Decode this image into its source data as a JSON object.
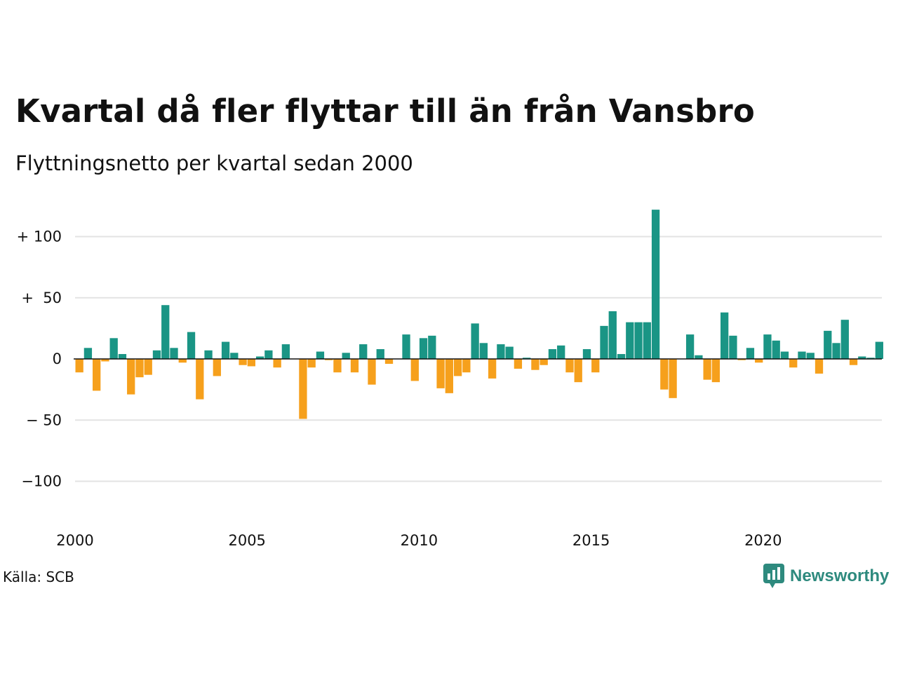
{
  "header": {
    "title": "Kvartal då fler flyttar till än från Vansbro",
    "subtitle": "Flyttningsnetto per kvartal sedan 2000"
  },
  "footer": {
    "source": "Källa: SCB",
    "brand": "Newsworthy"
  },
  "colors": {
    "positive": "#1a9585",
    "negative": "#f6a01c",
    "grid": "#e3e3e3",
    "brand": "#2e8a7e"
  },
  "chart_data": {
    "type": "bar",
    "title": "Kvartal då fler flyttar till än från Vansbro",
    "subtitle": "Flyttningsnetto per kvartal sedan 2000",
    "xlabel": "",
    "ylabel": "",
    "ylim": [
      -130,
      125
    ],
    "yticks": [
      {
        "value": 100,
        "label": "+ 100"
      },
      {
        "value": 50,
        "label": "+  50"
      },
      {
        "value": 0,
        "label": "0"
      },
      {
        "value": -50,
        "label": "− 50"
      },
      {
        "value": -100,
        "label": "−100"
      }
    ],
    "xticks": [
      {
        "value": 2000,
        "label": "2000"
      },
      {
        "value": 2005,
        "label": "2005"
      },
      {
        "value": 2010,
        "label": "2010"
      },
      {
        "value": 2015,
        "label": "2015"
      },
      {
        "value": 2020,
        "label": "2020"
      }
    ],
    "grid": true,
    "start_year": 2000,
    "start_quarter": 1,
    "values": [
      -11,
      9,
      -26,
      -2,
      17,
      4,
      -29,
      -15,
      -13,
      7,
      44,
      9,
      -3,
      22,
      -33,
      7,
      -14,
      14,
      5,
      -5,
      -6,
      2,
      7,
      -7,
      12,
      0,
      -49,
      -7,
      6,
      -1,
      -11,
      5,
      -11,
      12,
      -21,
      8,
      -4,
      0,
      20,
      -18,
      17,
      19,
      -24,
      -28,
      -14,
      -11,
      29,
      13,
      -16,
      12,
      10,
      -8,
      1,
      -9,
      -5,
      8,
      11,
      -11,
      -19,
      8,
      -11,
      27,
      39,
      4,
      30,
      30,
      30,
      122,
      -25,
      -32,
      0,
      20,
      3,
      -17,
      -19,
      38,
      19,
      -1,
      9,
      -3,
      20,
      15,
      6,
      -7,
      6,
      5,
      -12,
      23,
      13,
      32,
      -5,
      2,
      1,
      14
    ]
  }
}
